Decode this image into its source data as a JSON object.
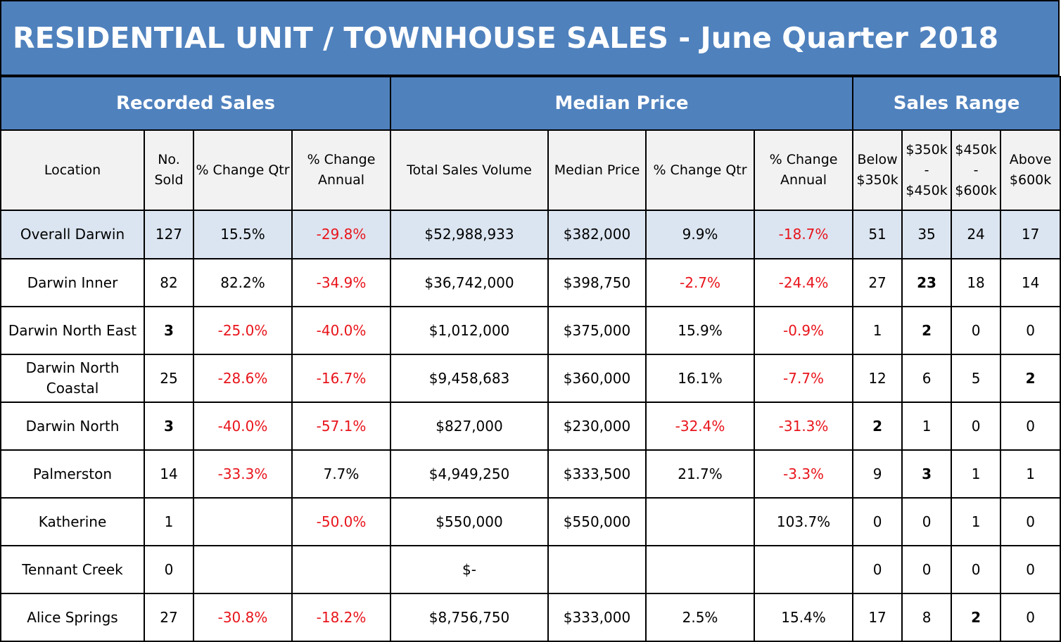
{
  "title": "RESIDENTIAL UNIT / TOWNHOUSE SALES - June Quarter 2018",
  "groups": {
    "recorded_sales": "Recorded Sales",
    "median_price": "Median Price",
    "sales_range": "Sales Range"
  },
  "headers": {
    "location": "Location",
    "no_sold": "No. Sold",
    "pct_change_qtr": "% Change Qtr",
    "pct_change_annual": "% Change Annual",
    "total_sales_volume": "Total Sales Volume",
    "median_price": "Median Price",
    "median_pct_change_qtr": "% Change Qtr",
    "median_pct_change_annual": "% Change Annual",
    "below_350k": "Below $350k",
    "r350_450": "$350k - $450k",
    "r450_600": "$450k - $600k",
    "above_600k": "Above $600k"
  },
  "rows": [
    {
      "location": "Overall Darwin",
      "no_sold": "127",
      "pct_change_qtr": "15.5%",
      "pct_change_annual": "-29.8%",
      "total_sales_volume": "$52,988,933",
      "median_price": "$382,000",
      "median_pct_change_qtr": "9.9%",
      "median_pct_change_annual": "-18.7%",
      "below_350k": "51",
      "r350_450": "35",
      "r450_600": "24",
      "above_600k": "17"
    },
    {
      "location": "Darwin Inner",
      "no_sold": "82",
      "pct_change_qtr": "82.2%",
      "pct_change_annual": "-34.9%",
      "total_sales_volume": "$36,742,000",
      "median_price": "$398,750",
      "median_pct_change_qtr": "-2.7%",
      "median_pct_change_annual": "-24.4%",
      "below_350k": "27",
      "r350_450": "23",
      "r450_600": "18",
      "above_600k": "14"
    },
    {
      "location": "Darwin North East",
      "no_sold": "3",
      "pct_change_qtr": "-25.0%",
      "pct_change_annual": "-40.0%",
      "total_sales_volume": "$1,012,000",
      "median_price": "$375,000",
      "median_pct_change_qtr": "15.9%",
      "median_pct_change_annual": "-0.9%",
      "below_350k": "1",
      "r350_450": "2",
      "r450_600": "0",
      "above_600k": "0"
    },
    {
      "location": "Darwin North Coastal",
      "no_sold": "25",
      "pct_change_qtr": "-28.6%",
      "pct_change_annual": "-16.7%",
      "total_sales_volume": "$9,458,683",
      "median_price": "$360,000",
      "median_pct_change_qtr": "16.1%",
      "median_pct_change_annual": "-7.7%",
      "below_350k": "12",
      "r350_450": "6",
      "r450_600": "5",
      "above_600k": "2"
    },
    {
      "location": "Darwin North",
      "no_sold": "3",
      "pct_change_qtr": "-40.0%",
      "pct_change_annual": "-57.1%",
      "total_sales_volume": "$827,000",
      "median_price": "$230,000",
      "median_pct_change_qtr": "-32.4%",
      "median_pct_change_annual": "-31.3%",
      "below_350k": "2",
      "r350_450": "1",
      "r450_600": "0",
      "above_600k": "0"
    },
    {
      "location": "Palmerston",
      "no_sold": "14",
      "pct_change_qtr": "-33.3%",
      "pct_change_annual": "7.7%",
      "total_sales_volume": "$4,949,250",
      "median_price": "$333,500",
      "median_pct_change_qtr": "21.7%",
      "median_pct_change_annual": "-3.3%",
      "below_350k": "9",
      "r350_450": "3",
      "r450_600": "1",
      "above_600k": "1"
    },
    {
      "location": "Katherine",
      "no_sold": "1",
      "pct_change_qtr": "",
      "pct_change_annual": "-50.0%",
      "total_sales_volume": "$550,000",
      "median_price": "$550,000",
      "median_pct_change_qtr": "",
      "median_pct_change_annual": "103.7%",
      "below_350k": "0",
      "r350_450": "0",
      "r450_600": "1",
      "above_600k": "0"
    },
    {
      "location": "Tennant Creek",
      "no_sold": "0",
      "pct_change_qtr": "",
      "pct_change_annual": "",
      "total_sales_volume": "$-",
      "median_price": "",
      "median_pct_change_qtr": "",
      "median_pct_change_annual": "",
      "below_350k": "0",
      "r350_450": "0",
      "r450_600": "0",
      "above_600k": "0"
    },
    {
      "location": "Alice Springs",
      "no_sold": "27",
      "pct_change_qtr": "-30.8%",
      "pct_change_annual": "-18.2%",
      "total_sales_volume": "$8,756,750",
      "median_price": "$333,000",
      "median_pct_change_qtr": "2.5%",
      "median_pct_change_annual": "15.4%",
      "below_350k": "17",
      "r350_450": "8",
      "r450_600": "2",
      "above_600k": "0"
    }
  ],
  "colors": {
    "header_blue": "#4f81bd",
    "highlight_row": "#dbe5f1",
    "negative_red": "#e8141b",
    "subheader_grey": "#f2f2f2"
  }
}
